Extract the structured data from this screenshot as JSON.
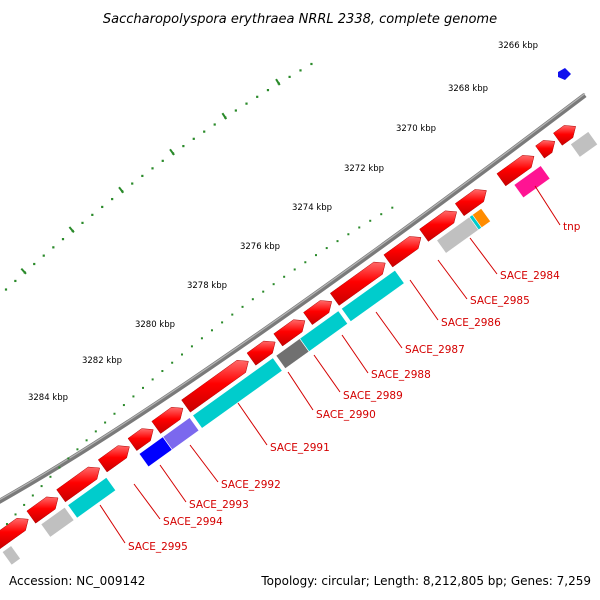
{
  "title": "Saccharopolyspora erythraea NRRL 2338, complete genome",
  "footer": {
    "accession": "Accession: NC_009142",
    "stats": "Topology: circular; Length: 8,212,805 bp; Genes: 7,259"
  },
  "scale_labels": [
    "3266 kbp",
    "3268 kbp",
    "3270 kbp",
    "3272 kbp",
    "3274 kbp",
    "3276 kbp",
    "3278 kbp",
    "3280 kbp",
    "3282 kbp",
    "3284 kbp"
  ],
  "gene_labels": [
    "tnp",
    "SACE_2984",
    "SACE_2985",
    "SACE_2986",
    "SACE_2987",
    "SACE_2988",
    "SACE_2989",
    "SACE_2990",
    "SACE_2991",
    "SACE_2992",
    "SACE_2993",
    "SACE_2994",
    "SACE_2995"
  ],
  "colors": {
    "backbone": "#808080",
    "cds": "#ff0000",
    "cog_cyan": "#00cccc",
    "cog_grey": "#c0c0c0",
    "cog_dark": "#707070",
    "cog_blue": "#0000ff",
    "cog_purple": "#7b68ee",
    "cog_orange": "#ff8c00",
    "cog_pink": "#ff1493",
    "tick": "#2a8a2a",
    "label": "#d40000"
  }
}
